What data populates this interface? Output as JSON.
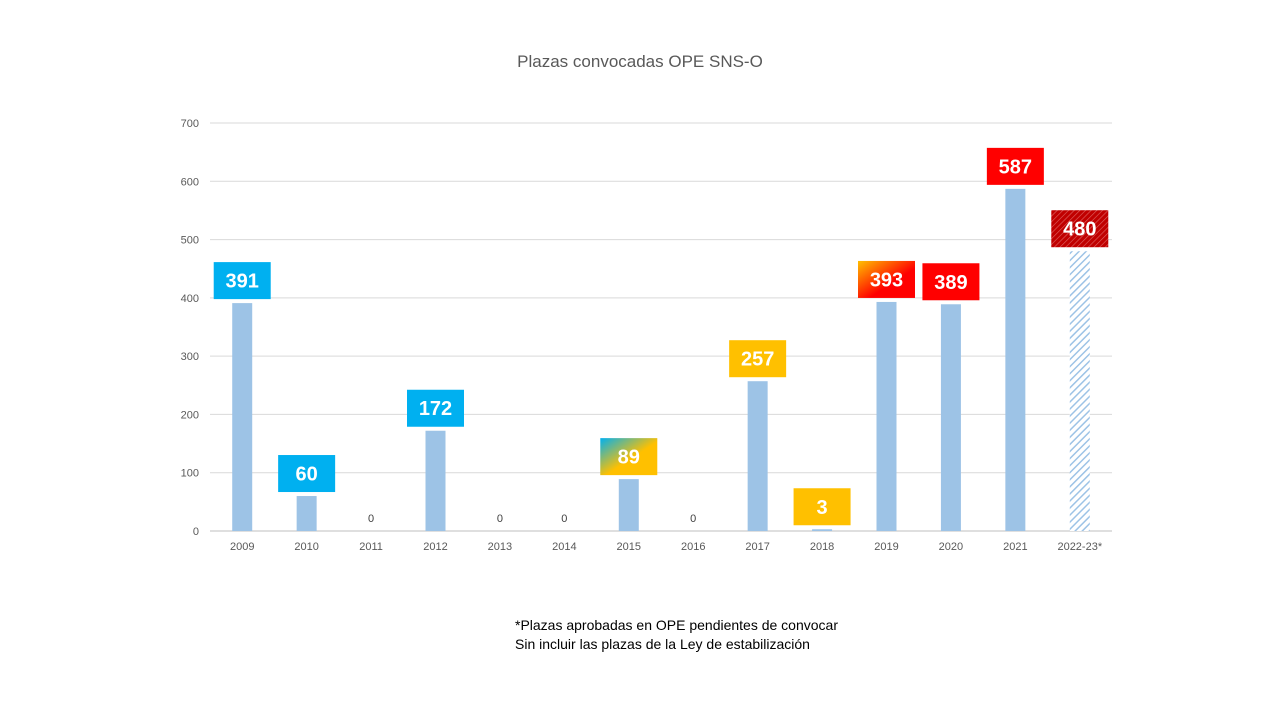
{
  "chart_data": {
    "type": "bar",
    "title": "Plazas convocadas OPE SNS-O",
    "categories": [
      "2009",
      "2010",
      "2011",
      "2012",
      "2013",
      "2014",
      "2015",
      "2016",
      "2017",
      "2018",
      "2019",
      "2020",
      "2021",
      "2022-23*"
    ],
    "values": [
      391,
      60,
      0,
      172,
      0,
      0,
      89,
      0,
      257,
      3,
      393,
      389,
      587,
      480
    ],
    "ylim": [
      0,
      700
    ],
    "yticks": [
      0,
      100,
      200,
      300,
      400,
      500,
      600,
      700
    ],
    "grid": true,
    "bar_color": "#9dc3e6",
    "last_bar_pattern": "hatched",
    "label_styles": [
      "blue",
      "blue",
      "none",
      "blue",
      "none",
      "none",
      "blue-yellow",
      "none",
      "yellow",
      "yellow",
      "yellow-red",
      "red",
      "red",
      "dark-red-hatched"
    ],
    "colors": {
      "blue": "#00b0f0",
      "yellow": "#ffc000",
      "red": "#ff0000",
      "dark_red": "#c00000"
    }
  },
  "footnote": {
    "line1": "*Plazas aprobadas en OPE pendientes de convocar",
    "line2": "Sin incluir las plazas de la Ley de estabilización"
  }
}
